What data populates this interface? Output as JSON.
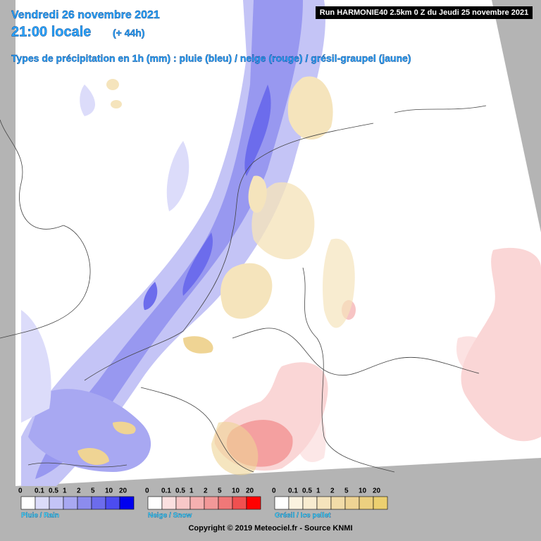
{
  "header": {
    "date": "Vendredi 26 novembre 2021",
    "time": "21:00 locale",
    "lead": "(+ 44h)",
    "subtitle": "Types de précipitation en 1h (mm) : pluie (bleu) / neige (rouge) / grésil-graupel (jaune)",
    "run": "Run HARMONIE40 2.5km 0 Z du Jeudi 25 novembre 2021"
  },
  "legends": [
    {
      "name": "Pluie / Rain",
      "ticks": [
        0,
        0.1,
        0.5,
        1,
        2,
        5,
        10,
        20
      ],
      "colors": [
        "#ffffff",
        "#dcdcfa",
        "#c4c4f6",
        "#a8a8f2",
        "#8c8cee",
        "#6c6cec",
        "#4c4cf0",
        "#0000f0"
      ]
    },
    {
      "name": "Neige / Snow",
      "ticks": [
        0,
        0.1,
        0.5,
        1,
        2,
        5,
        10,
        20
      ],
      "colors": [
        "#ffffff",
        "#fbe0e0",
        "#f8c8c8",
        "#f5b0b0",
        "#f29898",
        "#f07878",
        "#f05050",
        "#ff0000"
      ]
    },
    {
      "name": "Grésil / Ice pellet",
      "ticks": [
        0,
        0.1,
        0.5,
        1,
        2,
        5,
        10,
        20
      ],
      "colors": [
        "#ffffff",
        "#fbf3e0",
        "#f8ecd0",
        "#f5e4bc",
        "#f2dca8",
        "#efd494",
        "#ecd080",
        "#ecd070"
      ]
    }
  ],
  "footer": {
    "copyright": "Copyright © 2019 Meteociel.fr - Source KNMI"
  }
}
